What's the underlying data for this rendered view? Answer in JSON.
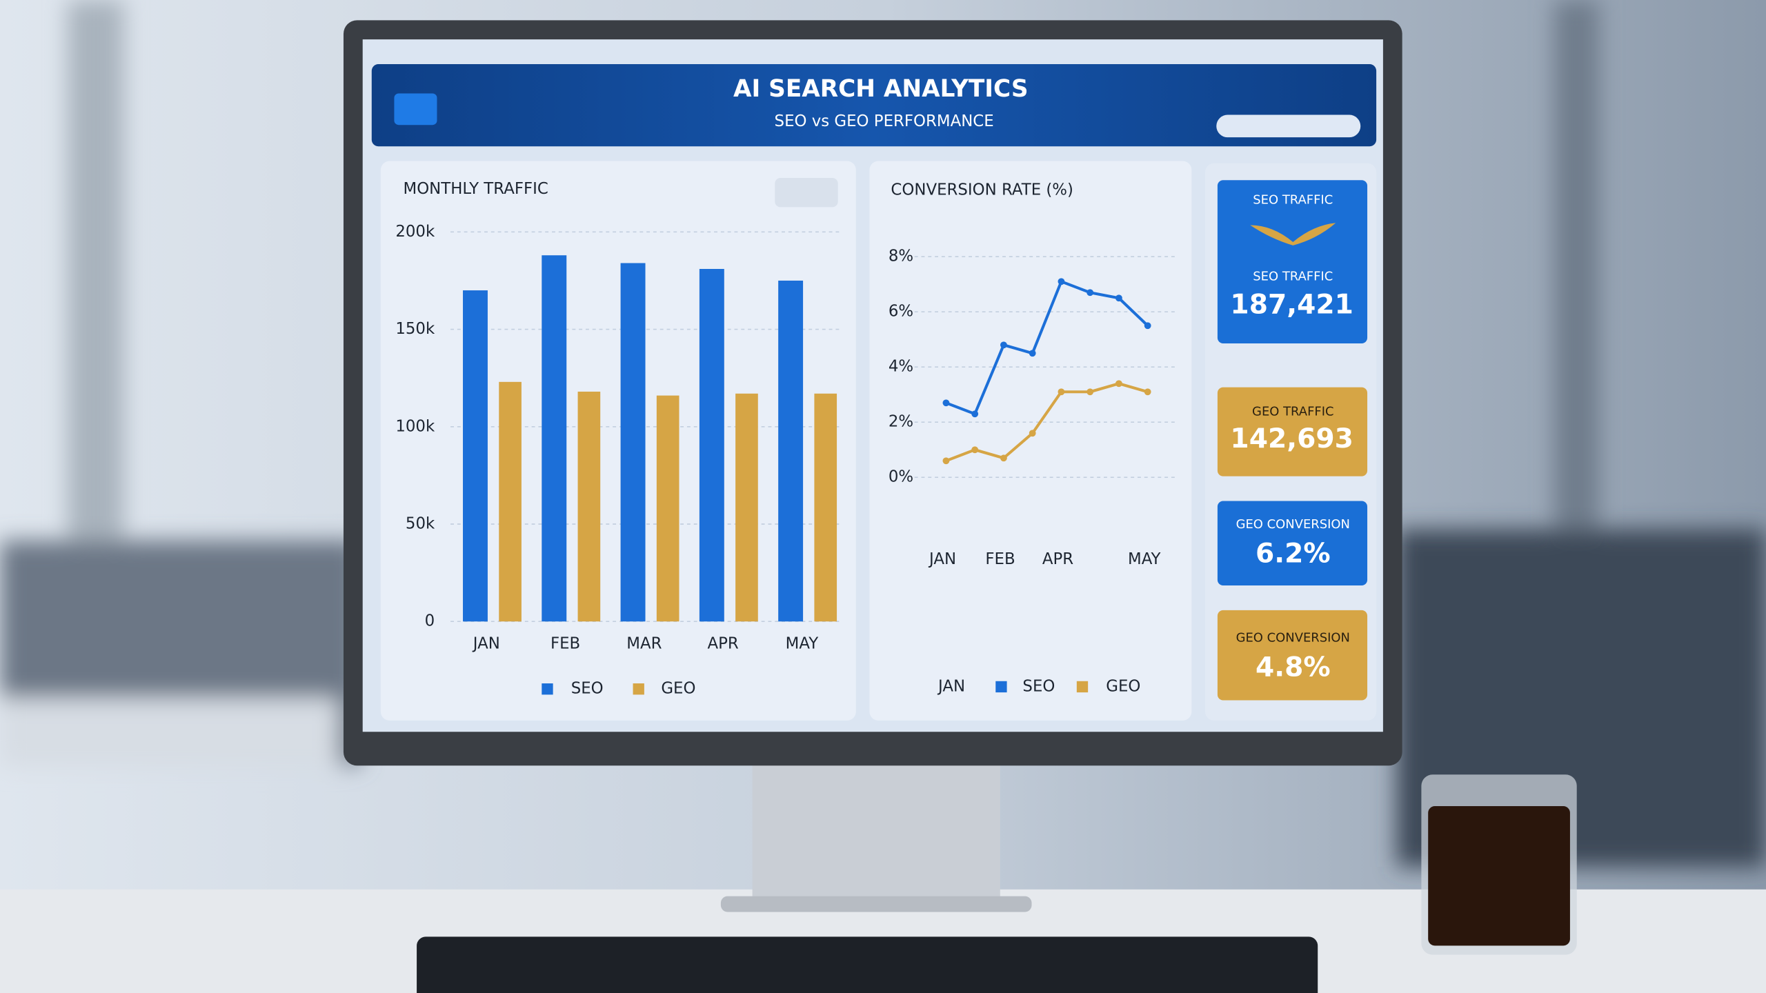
{
  "header": {
    "title": "AI SEARCH ANALYTICS",
    "subtitle": "SEO vs GEO PERFORMANCE"
  },
  "chart_data": [
    {
      "type": "bar",
      "title": "MONTHLY TRAFFIC",
      "categories": [
        "JAN",
        "FEB",
        "MAR",
        "APR",
        "MAY"
      ],
      "series": [
        {
          "name": "SEO",
          "color": "#1c6fd8",
          "values": [
            170000,
            188000,
            184000,
            181000,
            175000
          ]
        },
        {
          "name": "GEO",
          "color": "#d6a545",
          "values": [
            123000,
            118000,
            116000,
            117000,
            117000
          ]
        }
      ],
      "ylim": [
        0,
        200000
      ],
      "yticks": [
        0,
        {
          "value": 50000,
          "label": "50k"
        },
        {
          "value": 100000,
          "label": "100k"
        },
        {
          "value": 150000,
          "label": "150k"
        },
        {
          "value": 200000,
          "label": "200k"
        }
      ],
      "grid": true
    },
    {
      "type": "line",
      "title": "CONVERSION RATE (%)",
      "categories": [
        "JAN",
        null,
        "FEB",
        null,
        "APR",
        null,
        null,
        "MAY"
      ],
      "series": [
        {
          "name": "SEO",
          "color": "#1c6fd8",
          "values": [
            2.7,
            2.3,
            4.8,
            4.5,
            7.1,
            6.7,
            6.5,
            5.5
          ]
        },
        {
          "name": "GEO",
          "color": "#d6a545",
          "values": [
            0.6,
            1.0,
            0.7,
            1.6,
            3.1,
            3.1,
            3.4,
            3.1
          ]
        }
      ],
      "ylim": [
        0,
        8
      ],
      "yticks": [
        {
          "value": 0,
          "label": "0%"
        },
        {
          "value": 2,
          "label": "2%"
        },
        {
          "value": 4,
          "label": "4%"
        },
        {
          "value": 6,
          "label": "6%"
        },
        {
          "value": 8,
          "label": "8%"
        }
      ],
      "grid": true,
      "footer_label": "JAN"
    }
  ],
  "kpis": [
    {
      "top": "SEO TRAFFIC",
      "label": "SEO TRAFFIC",
      "value": "187,421"
    },
    {
      "label": "GEO TRAFFIC",
      "value": "142,693"
    },
    {
      "label": "GEO CONVERSION",
      "value": "6.2%"
    },
    {
      "label": "GEO CONVERSION",
      "value": "4.8%"
    }
  ]
}
